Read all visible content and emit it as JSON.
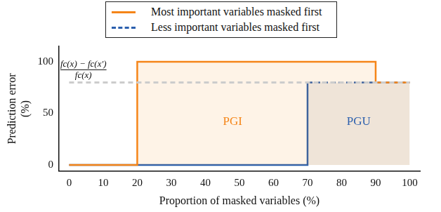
{
  "chart_data": {
    "type": "line",
    "x_label": "Proportion of masked variables (%)",
    "y_label": "Prediction error (%)",
    "xlim": [
      -3,
      103
    ],
    "xticks": [
      0,
      10,
      20,
      30,
      40,
      50,
      60,
      70,
      80,
      90,
      100
    ],
    "ylim": [
      -6,
      115
    ],
    "yticks": [
      0,
      50,
      100
    ],
    "grid": false,
    "legend": "top",
    "series": [
      {
        "name": "Most important variables masked first",
        "color": "#f58518",
        "line_style": "solid",
        "x": [
          0,
          20,
          20,
          90,
          90,
          100
        ],
        "values": [
          0,
          0,
          100,
          100,
          80,
          80
        ]
      },
      {
        "name": "Less important variables masked first",
        "color": "#2b5fad",
        "line_style": "dashed",
        "x": [
          0,
          70,
          70,
          100
        ],
        "values": [
          0,
          0,
          80,
          80
        ]
      }
    ],
    "reference_line": {
      "y": 80,
      "color": "#cccccc",
      "numerator": "fc(x) − fc(x′)",
      "denominator": "fc(x)"
    },
    "annotations": [
      {
        "text": "PGI",
        "x": 48,
        "y": 42,
        "color": "#f58518"
      },
      {
        "text": "PGU",
        "x": 85,
        "y": 42,
        "color": "#2b5fad"
      }
    ]
  }
}
